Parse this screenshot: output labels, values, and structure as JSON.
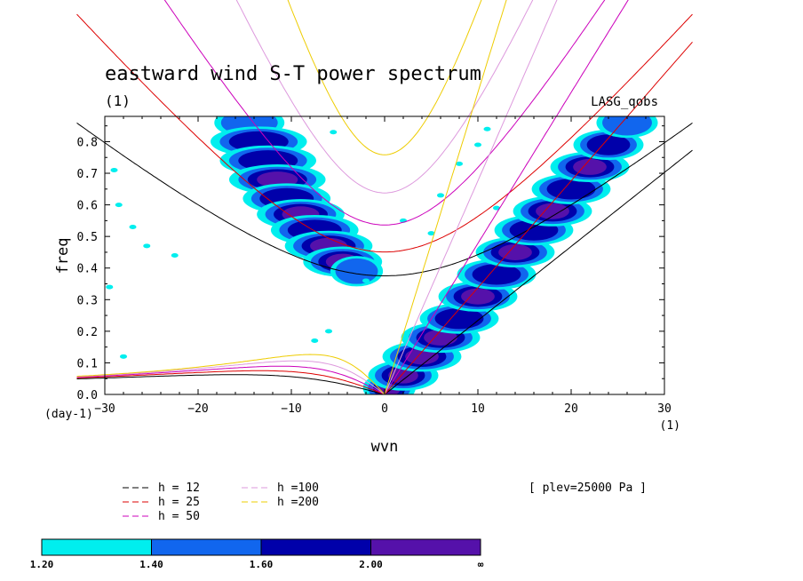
{
  "chart_data": {
    "type": "heatmap",
    "title": "eastward wind S-T power spectrum",
    "subtitle": "(1)",
    "source_label": "LASG_qobs",
    "level_label": "[ plev=25000 Pa ]",
    "xlabel": "wvn",
    "ylabel": "freq",
    "x_unit": "(1)",
    "y_unit": "(day-1)",
    "xlim": [
      -30,
      30
    ],
    "ylim": [
      0,
      0.88
    ],
    "x_ticks": [
      -30,
      -20,
      -10,
      0,
      10,
      20,
      30
    ],
    "x_tick_labels": [
      "−30",
      "−20",
      "−10",
      "0",
      "10",
      "20",
      "30"
    ],
    "y_ticks": [
      0.0,
      0.1,
      0.2,
      0.3,
      0.4,
      0.5,
      0.6,
      0.7,
      0.8
    ],
    "y_tick_labels": [
      "0.0",
      "0.1",
      "0.2",
      "0.3",
      "0.4",
      "0.5",
      "0.6",
      "0.7",
      "0.8"
    ],
    "grid": false,
    "dispersion_curves": [
      {
        "name": "h = 12",
        "equivalent_depth": 12,
        "color": "#000000"
      },
      {
        "name": "h = 25",
        "equivalent_depth": 25,
        "color": "#dd0000"
      },
      {
        "name": "h = 50",
        "equivalent_depth": 50,
        "color": "#cc00bb"
      },
      {
        "name": "h =100",
        "equivalent_depth": 100,
        "color": "#dd99dd"
      },
      {
        "name": "h =200",
        "equivalent_depth": 200,
        "color": "#eecc00"
      }
    ],
    "power_bands": [
      {
        "center": [
          -14.5,
          0.86
        ],
        "width": 1.6,
        "level": 2
      },
      {
        "center": [
          -13.5,
          0.8
        ],
        "width": 2.2,
        "level": 3
      },
      {
        "center": [
          -12.5,
          0.74
        ],
        "width": 2.2,
        "level": 3
      },
      {
        "center": [
          -11.5,
          0.68
        ],
        "width": 2.2,
        "level": 4
      },
      {
        "center": [
          -10.5,
          0.62
        ],
        "width": 2.0,
        "level": 3
      },
      {
        "center": [
          -9.0,
          0.57
        ],
        "width": 2.0,
        "level": 4
      },
      {
        "center": [
          -7.5,
          0.52
        ],
        "width": 2.0,
        "level": 3
      },
      {
        "center": [
          -6.0,
          0.47
        ],
        "width": 2.0,
        "level": 4
      },
      {
        "center": [
          -4.5,
          0.42
        ],
        "width": 1.8,
        "level": 4
      },
      {
        "center": [
          -3.0,
          0.39
        ],
        "width": 1.2,
        "level": 2
      },
      {
        "center": [
          0.5,
          0.02
        ],
        "width": 1.2,
        "level": 4
      },
      {
        "center": [
          2.0,
          0.06
        ],
        "width": 1.6,
        "level": 4
      },
      {
        "center": [
          4.0,
          0.12
        ],
        "width": 1.8,
        "level": 4
      },
      {
        "center": [
          6.0,
          0.18
        ],
        "width": 1.8,
        "level": 4
      },
      {
        "center": [
          8.0,
          0.24
        ],
        "width": 1.8,
        "level": 3
      },
      {
        "center": [
          10.0,
          0.31
        ],
        "width": 1.8,
        "level": 4
      },
      {
        "center": [
          12.0,
          0.38
        ],
        "width": 1.8,
        "level": 3
      },
      {
        "center": [
          14.0,
          0.45
        ],
        "width": 1.8,
        "level": 4
      },
      {
        "center": [
          16.0,
          0.52
        ],
        "width": 1.8,
        "level": 3
      },
      {
        "center": [
          18.0,
          0.58
        ],
        "width": 1.8,
        "level": 4
      },
      {
        "center": [
          20.0,
          0.65
        ],
        "width": 1.8,
        "level": 3
      },
      {
        "center": [
          22.0,
          0.72
        ],
        "width": 1.8,
        "level": 4
      },
      {
        "center": [
          24.0,
          0.79
        ],
        "width": 1.6,
        "level": 3
      },
      {
        "center": [
          26.0,
          0.86
        ],
        "width": 1.4,
        "level": 2
      }
    ],
    "scattered_patches": [
      {
        "x": -29,
        "y": 0.71
      },
      {
        "x": -28.5,
        "y": 0.6
      },
      {
        "x": -27,
        "y": 0.53
      },
      {
        "x": -25.5,
        "y": 0.47
      },
      {
        "x": -22.5,
        "y": 0.44
      },
      {
        "x": -29.5,
        "y": 0.34
      },
      {
        "x": -28,
        "y": 0.12
      },
      {
        "x": -6,
        "y": 0.2
      },
      {
        "x": -7.5,
        "y": 0.17
      },
      {
        "x": -5.5,
        "y": 0.83
      },
      {
        "x": 6,
        "y": 0.63
      },
      {
        "x": 8,
        "y": 0.73
      },
      {
        "x": 10,
        "y": 0.79
      },
      {
        "x": 11,
        "y": 0.84
      },
      {
        "x": 2,
        "y": 0.55
      },
      {
        "x": -2,
        "y": 0.36
      },
      {
        "x": 12,
        "y": 0.59
      },
      {
        "x": 5,
        "y": 0.51
      }
    ],
    "colorbar": {
      "colors": [
        "#00eeee",
        "#1166ee",
        "#0000aa",
        "#5511aa"
      ],
      "tick_labels": [
        "1.20",
        "1.40",
        "1.60",
        "2.00",
        "∞"
      ]
    }
  }
}
